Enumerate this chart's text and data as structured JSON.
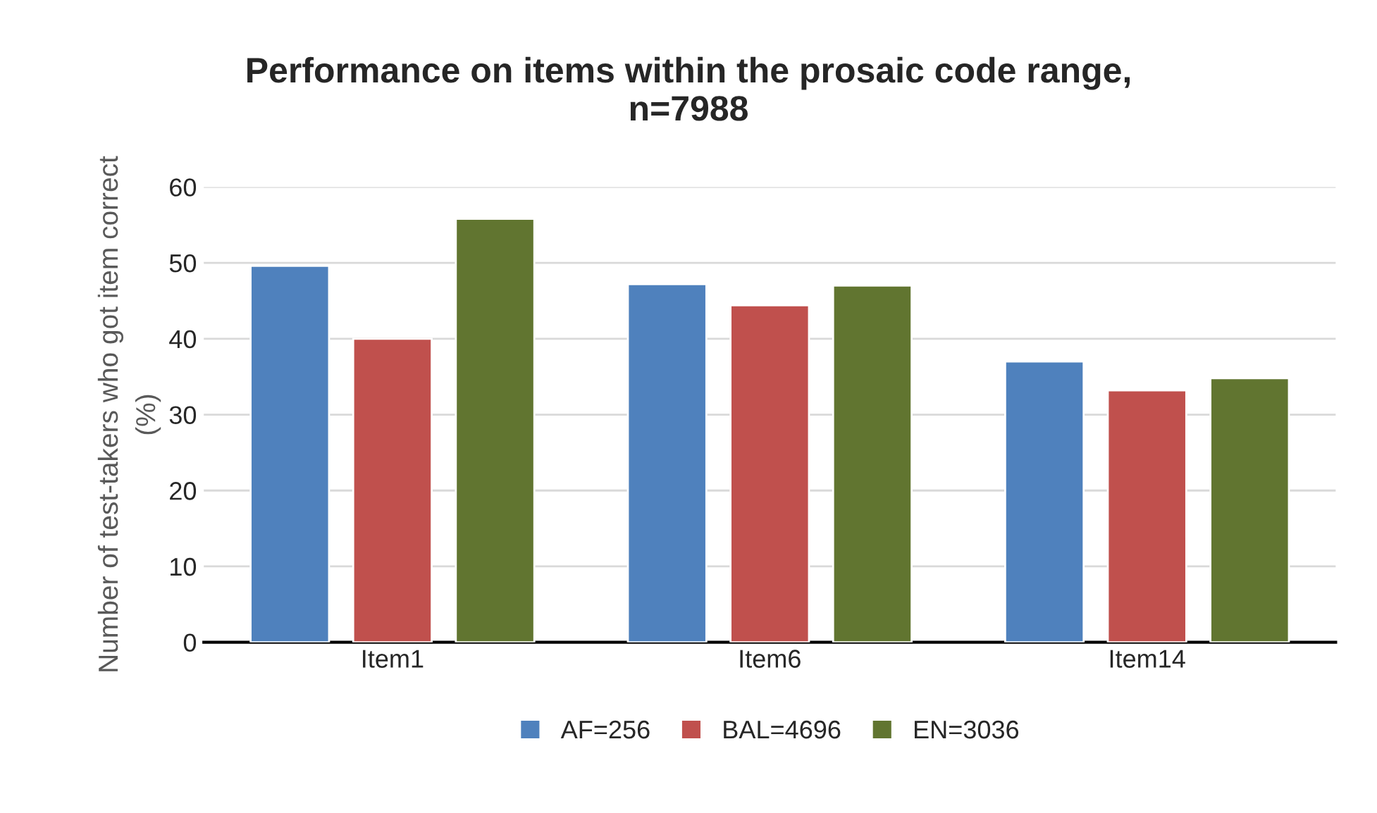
{
  "chart_data": {
    "type": "bar",
    "title": "Performance on items within the prosaic code range,\nn=7988",
    "ylabel": "Number of test-takers who got item correct\n(%)",
    "categories": [
      "Item1",
      "Item6",
      "Item14"
    ],
    "series": [
      {
        "name": "AF=256",
        "color": "#4f81bd",
        "values": [
          49.6,
          47.2,
          37.0
        ]
      },
      {
        "name": "BAL=4696",
        "color": "#c0504d",
        "values": [
          40.0,
          44.4,
          33.2
        ]
      },
      {
        "name": "EN=3036",
        "color": "#617530",
        "values": [
          55.8,
          47.0,
          34.8
        ]
      }
    ],
    "ylim": [
      0,
      60
    ],
    "yticks": [
      0,
      10,
      20,
      30,
      40,
      50,
      60
    ],
    "grid": "y",
    "legend": "bottom"
  }
}
